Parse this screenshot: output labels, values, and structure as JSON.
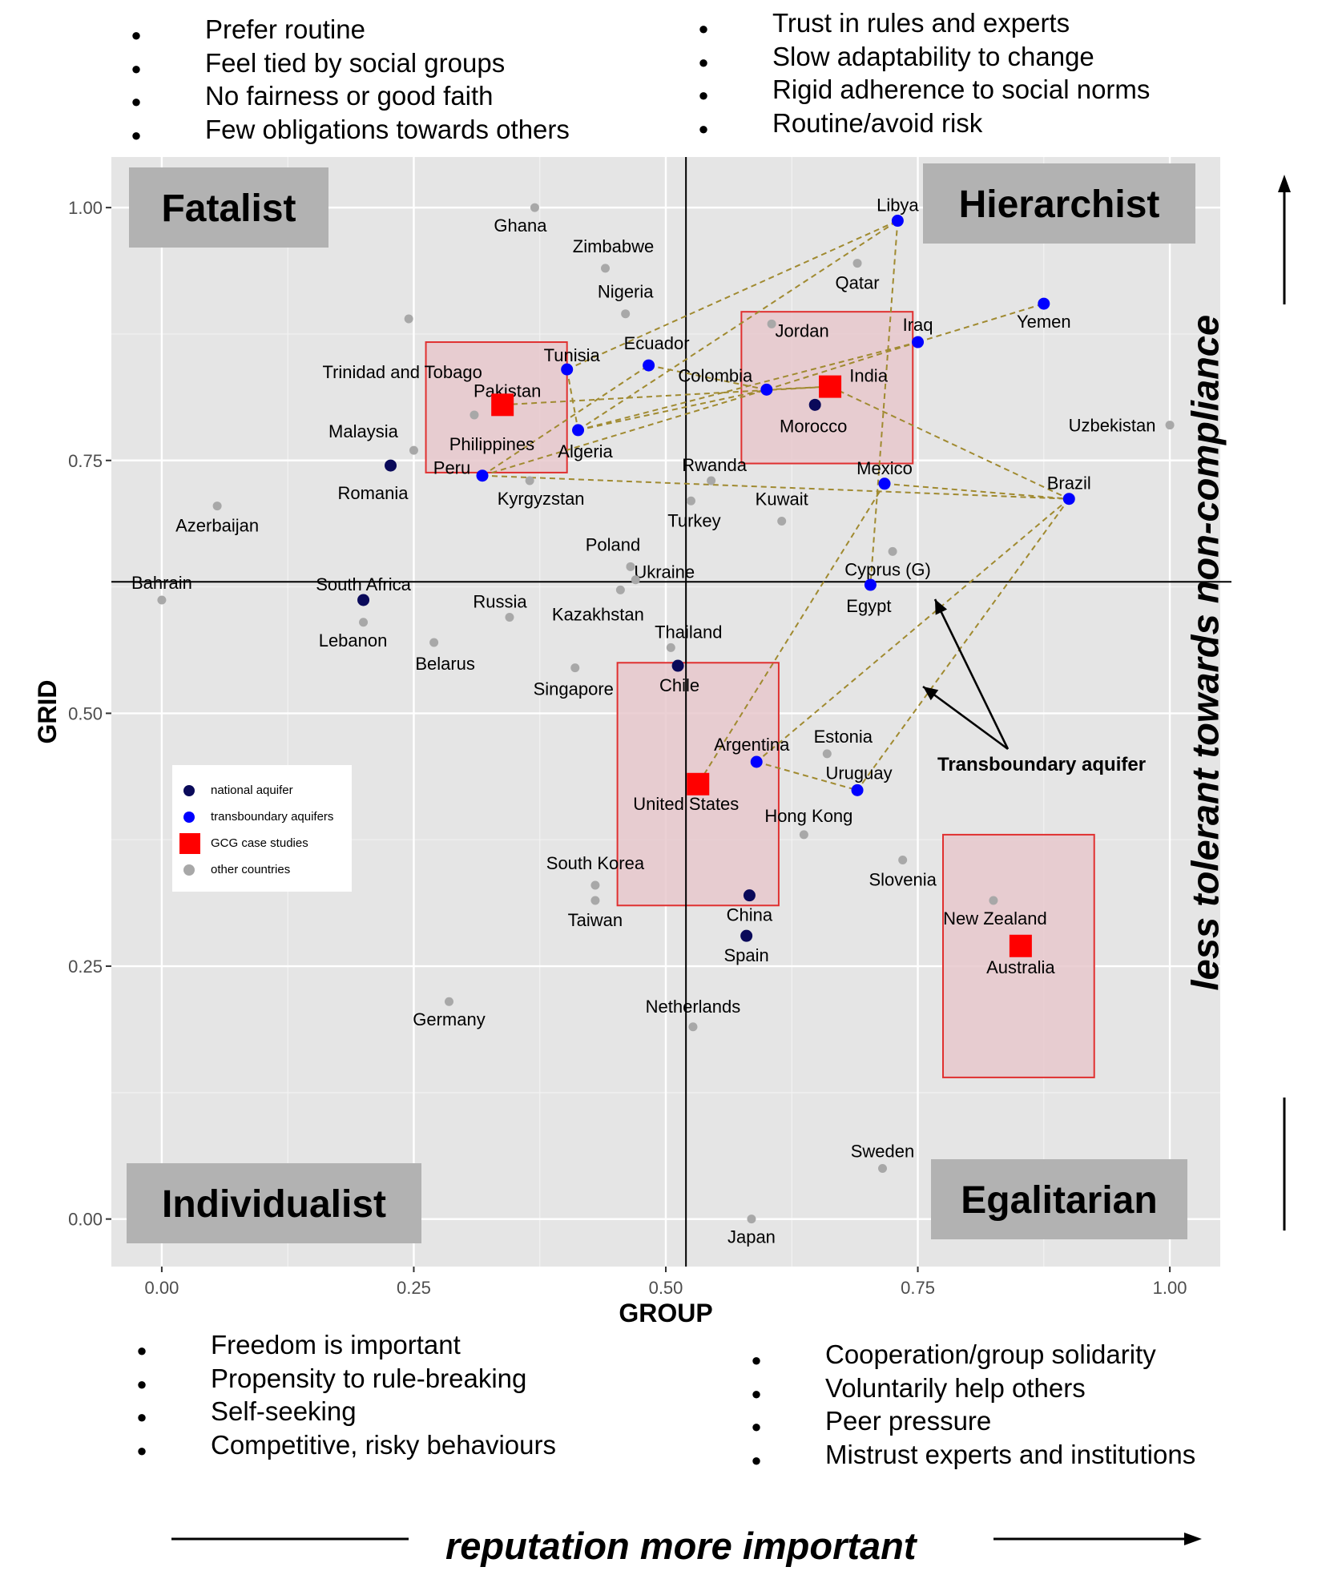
{
  "bullets": {
    "top_left": [
      "Prefer routine",
      "Feel tied by social groups",
      "No fairness or good faith",
      "Few obligations towards others"
    ],
    "top_right": [
      "Trust in rules and experts",
      "Slow adaptability to change",
      "Rigid adherence to social norms",
      "Routine/avoid risk"
    ],
    "bottom_left": [
      "Freedom is important",
      "Propensity to rule-breaking",
      "Self-seeking",
      "Competitive, risky behaviours"
    ],
    "bottom_right": [
      "Cooperation/group solidarity",
      "Voluntarily help others",
      "Peer pressure",
      "Mistrust experts and institutions"
    ]
  },
  "bullet_char": "●",
  "bottom_caption": "reputation more important",
  "side_caption": "less tolerant towards non-compliance",
  "annotation": "Transboundary aquifer",
  "legend": [
    {
      "label": "national aquifer",
      "color": "#0a0a5a",
      "shape": "circle"
    },
    {
      "label": "transboundary aquifers",
      "color": "#0000ff",
      "shape": "circle"
    },
    {
      "label": "GCG case studies",
      "color": "#ff0000",
      "shape": "square"
    },
    {
      "label": "other countries",
      "color": "#a8a8a8",
      "shape": "circle"
    }
  ],
  "chart_data": {
    "type": "scatter",
    "xlabel": "GROUP",
    "ylabel": "GRID",
    "xlim": [
      -0.05,
      1.05
    ],
    "ylim": [
      -0.047,
      1.05
    ],
    "x_ticks": [
      0,
      0.25,
      0.5,
      0.75,
      1
    ],
    "x_tick_labels": [
      "0.00",
      "0.25",
      "0.50",
      "0.75",
      "1.00"
    ],
    "y_ticks": [
      0,
      0.25,
      0.5,
      0.75,
      1
    ],
    "y_tick_labels": [
      "0.00",
      "0.25",
      "0.50",
      "0.75",
      "1.00"
    ],
    "grid": true,
    "legend_position": "left",
    "reference_lines": {
      "x": 0.52,
      "y": 0.63
    },
    "colors": {
      "national": "#0a0a5a",
      "transboundary": "#0000ff",
      "gcg": "#ff0000",
      "other": "#a8a8a8",
      "panel": "#e5e5e5",
      "gridline": "#ffffff",
      "box_fill": "#e8c8cc",
      "box_stroke": "#e03030",
      "dashed": "#a08a30",
      "quadrant": "#b2b2b2"
    },
    "quadrants": [
      {
        "label": "Fatalist",
        "position": "top-left"
      },
      {
        "label": "Hierarchist",
        "position": "top-right"
      },
      {
        "label": "Individualist",
        "position": "bottom-left"
      },
      {
        "label": "Egalitarian",
        "position": "bottom-right"
      }
    ],
    "points": [
      {
        "label": "Ghana",
        "x": 0.37,
        "y": 1.0,
        "category": "other"
      },
      {
        "label": "Zimbabwe",
        "x": 0.44,
        "y": 0.94,
        "category": "other"
      },
      {
        "label": "Nigeria",
        "x": 0.46,
        "y": 0.895,
        "category": "other"
      },
      {
        "label": "Trinidad and Tobago",
        "x": 0.245,
        "y": 0.89,
        "category": "other"
      },
      {
        "label": "Qatar",
        "x": 0.69,
        "y": 0.945,
        "category": "other"
      },
      {
        "label": "Jordan",
        "x": 0.605,
        "y": 0.885,
        "category": "other"
      },
      {
        "label": "Philippines",
        "x": 0.31,
        "y": 0.795,
        "category": "other"
      },
      {
        "label": "Malaysia",
        "x": 0.25,
        "y": 0.76,
        "category": "other"
      },
      {
        "label": "Kyrgyzstan",
        "x": 0.365,
        "y": 0.73,
        "category": "other"
      },
      {
        "label": "Rwanda",
        "x": 0.545,
        "y": 0.73,
        "category": "other"
      },
      {
        "label": "Turkey",
        "x": 0.525,
        "y": 0.71,
        "category": "other"
      },
      {
        "label": "Kuwait",
        "x": 0.615,
        "y": 0.69,
        "category": "other"
      },
      {
        "label": "Uzbekistan",
        "x": 1.0,
        "y": 0.785,
        "category": "other"
      },
      {
        "label": "Azerbaijan",
        "x": 0.055,
        "y": 0.705,
        "category": "other"
      },
      {
        "label": "Poland",
        "x": 0.465,
        "y": 0.645,
        "category": "other"
      },
      {
        "label": "Ukraine",
        "x": 0.47,
        "y": 0.632,
        "category": "other"
      },
      {
        "label": "Kazakhstan",
        "x": 0.455,
        "y": 0.622,
        "category": "other"
      },
      {
        "label": "Cyprus (G)",
        "x": 0.725,
        "y": 0.66,
        "category": "other"
      },
      {
        "label": "Bahrain",
        "x": 0.0,
        "y": 0.612,
        "category": "other"
      },
      {
        "label": "Russia",
        "x": 0.345,
        "y": 0.595,
        "category": "other"
      },
      {
        "label": "Lebanon",
        "x": 0.2,
        "y": 0.59,
        "category": "other"
      },
      {
        "label": "Belarus",
        "x": 0.27,
        "y": 0.57,
        "category": "other"
      },
      {
        "label": "Thailand",
        "x": 0.505,
        "y": 0.565,
        "category": "other"
      },
      {
        "label": "Singapore",
        "x": 0.41,
        "y": 0.545,
        "category": "other"
      },
      {
        "label": "Estonia",
        "x": 0.66,
        "y": 0.46,
        "category": "other"
      },
      {
        "label": "Hong Kong",
        "x": 0.637,
        "y": 0.38,
        "category": "other"
      },
      {
        "label": "Slovenia",
        "x": 0.735,
        "y": 0.355,
        "category": "other"
      },
      {
        "label": "New Zealand",
        "x": 0.825,
        "y": 0.315,
        "category": "other"
      },
      {
        "label": "South Korea",
        "x": 0.43,
        "y": 0.33,
        "category": "other"
      },
      {
        "label": "Taiwan",
        "x": 0.43,
        "y": 0.315,
        "category": "other"
      },
      {
        "label": "Germany",
        "x": 0.285,
        "y": 0.215,
        "category": "other"
      },
      {
        "label": "Netherlands",
        "x": 0.527,
        "y": 0.19,
        "category": "other"
      },
      {
        "label": "Sweden",
        "x": 0.715,
        "y": 0.05,
        "category": "other"
      },
      {
        "label": "Japan",
        "x": 0.585,
        "y": 0.0,
        "category": "other"
      },
      {
        "label": "Romania",
        "x": 0.227,
        "y": 0.745,
        "category": "national"
      },
      {
        "label": "Morocco",
        "x": 0.648,
        "y": 0.805,
        "category": "national"
      },
      {
        "label": "South Africa",
        "x": 0.2,
        "y": 0.612,
        "category": "national"
      },
      {
        "label": "Chile",
        "x": 0.512,
        "y": 0.547,
        "category": "national"
      },
      {
        "label": "China",
        "x": 0.583,
        "y": 0.32,
        "category": "national"
      },
      {
        "label": "Spain",
        "x": 0.58,
        "y": 0.28,
        "category": "national"
      },
      {
        "label": "Libya",
        "x": 0.73,
        "y": 0.987,
        "category": "transboundary"
      },
      {
        "label": "Yemen",
        "x": 0.875,
        "y": 0.905,
        "category": "transboundary"
      },
      {
        "label": "Iraq",
        "x": 0.75,
        "y": 0.867,
        "category": "transboundary"
      },
      {
        "label": "Ecuador",
        "x": 0.483,
        "y": 0.844,
        "category": "transboundary"
      },
      {
        "label": "Tunisia",
        "x": 0.402,
        "y": 0.84,
        "category": "transboundary"
      },
      {
        "label": "Colombia",
        "x": 0.6,
        "y": 0.82,
        "category": "transboundary"
      },
      {
        "label": "Algeria",
        "x": 0.413,
        "y": 0.78,
        "category": "transboundary"
      },
      {
        "label": "Peru",
        "x": 0.318,
        "y": 0.735,
        "category": "transboundary"
      },
      {
        "label": "Mexico",
        "x": 0.717,
        "y": 0.727,
        "category": "transboundary"
      },
      {
        "label": "Brazil",
        "x": 0.9,
        "y": 0.712,
        "category": "transboundary"
      },
      {
        "label": "Egypt",
        "x": 0.703,
        "y": 0.627,
        "category": "transboundary"
      },
      {
        "label": "Argentina",
        "x": 0.59,
        "y": 0.452,
        "category": "transboundary"
      },
      {
        "label": "Uruguay",
        "x": 0.69,
        "y": 0.424,
        "category": "transboundary"
      },
      {
        "label": "Pakistan",
        "x": 0.338,
        "y": 0.805,
        "category": "gcg"
      },
      {
        "label": "India",
        "x": 0.663,
        "y": 0.823,
        "category": "gcg"
      },
      {
        "label": "United States",
        "x": 0.532,
        "y": 0.43,
        "category": "gcg"
      },
      {
        "label": "Australia",
        "x": 0.852,
        "y": 0.27,
        "category": "gcg"
      }
    ],
    "case_boxes": [
      {
        "for": "Pakistan",
        "x0": 0.262,
        "x1": 0.402,
        "y0": 0.738,
        "y1": 0.867
      },
      {
        "for": "India",
        "x0": 0.575,
        "x1": 0.745,
        "y0": 0.747,
        "y1": 0.897
      },
      {
        "for": "United States",
        "x0": 0.452,
        "x1": 0.612,
        "y0": 0.31,
        "y1": 0.55
      },
      {
        "for": "Australia",
        "x0": 0.775,
        "x1": 0.925,
        "y0": 0.14,
        "y1": 0.38
      }
    ],
    "connections": [
      [
        "Pakistan",
        "India"
      ],
      [
        "Tunisia",
        "Libya"
      ],
      [
        "Tunisia",
        "Algeria"
      ],
      [
        "Algeria",
        "Libya"
      ],
      [
        "Peru",
        "Ecuador"
      ],
      [
        "Peru",
        "Colombia"
      ],
      [
        "Peru",
        "Brazil"
      ],
      [
        "Ecuador",
        "Colombia"
      ],
      [
        "Algeria",
        "Colombia"
      ],
      [
        "Algeria",
        "Iraq"
      ],
      [
        "Colombia",
        "Iraq"
      ],
      [
        "Colombia",
        "India"
      ],
      [
        "India",
        "Brazil"
      ],
      [
        "Iraq",
        "Yemen"
      ],
      [
        "Libya",
        "Egypt"
      ],
      [
        "Mexico",
        "Brazil"
      ],
      [
        "Mexico",
        "United States"
      ],
      [
        "Brazil",
        "Argentina"
      ],
      [
        "Brazil",
        "Uruguay"
      ],
      [
        "Argentina",
        "Uruguay"
      ]
    ]
  }
}
